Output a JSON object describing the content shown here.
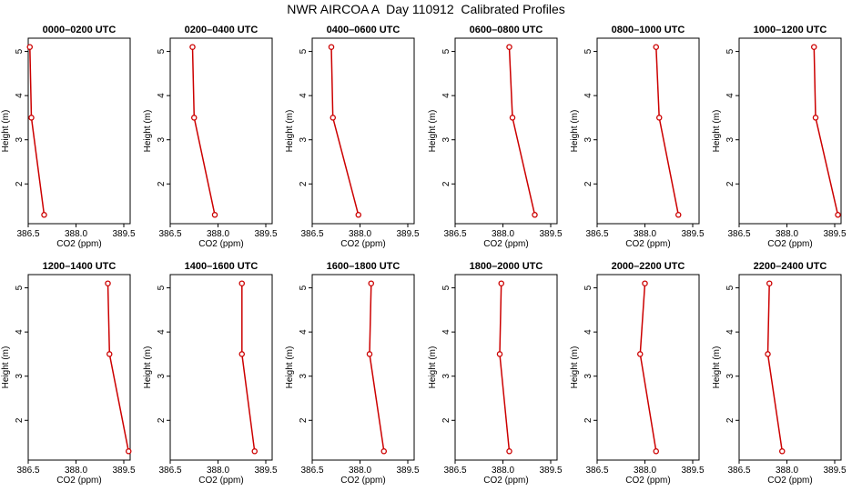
{
  "title": "NWR AIRCOA A  Day 110912  Calibrated Profiles",
  "colors": {
    "series": "#cc0000",
    "axis": "#000000"
  },
  "chart_data": [
    {
      "type": "line",
      "title": "0000–0200 UTC",
      "xlabel": "CO2 (ppm)",
      "ylabel": "Height (m)",
      "xlim": [
        386.5,
        389.7
      ],
      "ylim": [
        1.1,
        5.3
      ],
      "xticks": [
        386.5,
        388.0,
        389.5
      ],
      "xtick_labels": [
        "386.5",
        "388.0",
        "389.5"
      ],
      "yticks": [
        2,
        3,
        4,
        5
      ],
      "ytick_labels": [
        "2",
        "3",
        "4",
        "5"
      ],
      "grid": false,
      "series": [
        {
          "x": [
            386.55,
            386.6,
            387.0
          ],
          "y": [
            5.1,
            3.5,
            1.3
          ]
        }
      ]
    },
    {
      "type": "line",
      "title": "0200–0400 UTC",
      "xlabel": "CO2 (ppm)",
      "ylabel": "Height (m)",
      "xlim": [
        386.5,
        389.7
      ],
      "ylim": [
        1.1,
        5.3
      ],
      "xticks": [
        386.5,
        388.0,
        389.5
      ],
      "xtick_labels": [
        "386.5",
        "388.0",
        "389.5"
      ],
      "yticks": [
        2,
        3,
        4,
        5
      ],
      "ytick_labels": [
        "2",
        "3",
        "4",
        "5"
      ],
      "grid": false,
      "series": [
        {
          "x": [
            387.2,
            387.25,
            387.9
          ],
          "y": [
            5.1,
            3.5,
            1.3
          ]
        }
      ]
    },
    {
      "type": "line",
      "title": "0400–0600 UTC",
      "xlabel": "CO2 (ppm)",
      "ylabel": "Height (m)",
      "xlim": [
        386.5,
        389.7
      ],
      "ylim": [
        1.1,
        5.3
      ],
      "xticks": [
        386.5,
        388.0,
        389.5
      ],
      "xtick_labels": [
        "386.5",
        "388.0",
        "389.5"
      ],
      "yticks": [
        2,
        3,
        4,
        5
      ],
      "ytick_labels": [
        "2",
        "3",
        "4",
        "5"
      ],
      "grid": false,
      "series": [
        {
          "x": [
            387.1,
            387.15,
            387.95
          ],
          "y": [
            5.1,
            3.5,
            1.3
          ]
        }
      ]
    },
    {
      "type": "line",
      "title": "0600–0800 UTC",
      "xlabel": "CO2 (ppm)",
      "ylabel": "Height (m)",
      "xlim": [
        386.5,
        389.7
      ],
      "ylim": [
        1.1,
        5.3
      ],
      "xticks": [
        386.5,
        388.0,
        389.5
      ],
      "xtick_labels": [
        "386.5",
        "388.0",
        "389.5"
      ],
      "yticks": [
        2,
        3,
        4,
        5
      ],
      "ytick_labels": [
        "2",
        "3",
        "4",
        "5"
      ],
      "grid": false,
      "series": [
        {
          "x": [
            388.2,
            388.3,
            389.0
          ],
          "y": [
            5.1,
            3.5,
            1.3
          ]
        }
      ]
    },
    {
      "type": "line",
      "title": "0800–1000 UTC",
      "xlabel": "CO2 (ppm)",
      "ylabel": "Height (m)",
      "xlim": [
        386.5,
        389.7
      ],
      "ylim": [
        1.1,
        5.3
      ],
      "xticks": [
        386.5,
        388.0,
        389.5
      ],
      "xtick_labels": [
        "386.5",
        "388.0",
        "389.5"
      ],
      "yticks": [
        2,
        3,
        4,
        5
      ],
      "ytick_labels": [
        "2",
        "3",
        "4",
        "5"
      ],
      "grid": false,
      "series": [
        {
          "x": [
            388.35,
            388.45,
            389.05
          ],
          "y": [
            5.1,
            3.5,
            1.3
          ]
        }
      ]
    },
    {
      "type": "line",
      "title": "1000–1200 UTC",
      "xlabel": "CO2 (ppm)",
      "ylabel": "Height (m)",
      "xlim": [
        386.5,
        389.7
      ],
      "ylim": [
        1.1,
        5.3
      ],
      "xticks": [
        386.5,
        388.0,
        389.5
      ],
      "xtick_labels": [
        "386.5",
        "388.0",
        "389.5"
      ],
      "yticks": [
        2,
        3,
        4,
        5
      ],
      "ytick_labels": [
        "2",
        "3",
        "4",
        "5"
      ],
      "grid": false,
      "series": [
        {
          "x": [
            388.85,
            388.9,
            389.6
          ],
          "y": [
            5.1,
            3.5,
            1.3
          ]
        }
      ]
    },
    {
      "type": "line",
      "title": "1200–1400 UTC",
      "xlabel": "CO2 (ppm)",
      "ylabel": "Height (m)",
      "xlim": [
        386.5,
        389.7
      ],
      "ylim": [
        1.1,
        5.3
      ],
      "xticks": [
        386.5,
        388.0,
        389.5
      ],
      "xtick_labels": [
        "386.5",
        "388.0",
        "389.5"
      ],
      "yticks": [
        2,
        3,
        4,
        5
      ],
      "ytick_labels": [
        "2",
        "3",
        "4",
        "5"
      ],
      "grid": false,
      "series": [
        {
          "x": [
            389.0,
            389.05,
            389.65
          ],
          "y": [
            5.1,
            3.5,
            1.3
          ]
        }
      ]
    },
    {
      "type": "line",
      "title": "1400–1600 UTC",
      "xlabel": "CO2 (ppm)",
      "ylabel": "Height (m)",
      "xlim": [
        386.5,
        389.7
      ],
      "ylim": [
        1.1,
        5.3
      ],
      "xticks": [
        386.5,
        388.0,
        389.5
      ],
      "xtick_labels": [
        "386.5",
        "388.0",
        "389.5"
      ],
      "yticks": [
        2,
        3,
        4,
        5
      ],
      "ytick_labels": [
        "2",
        "3",
        "4",
        "5"
      ],
      "grid": false,
      "series": [
        {
          "x": [
            388.75,
            388.75,
            389.15
          ],
          "y": [
            5.1,
            3.5,
            1.3
          ]
        }
      ]
    },
    {
      "type": "line",
      "title": "1600–1800 UTC",
      "xlabel": "CO2 (ppm)",
      "ylabel": "Height (m)",
      "xlim": [
        386.5,
        389.7
      ],
      "ylim": [
        1.1,
        5.3
      ],
      "xticks": [
        386.5,
        388.0,
        389.5
      ],
      "xtick_labels": [
        "386.5",
        "388.0",
        "389.5"
      ],
      "yticks": [
        2,
        3,
        4,
        5
      ],
      "ytick_labels": [
        "2",
        "3",
        "4",
        "5"
      ],
      "grid": false,
      "series": [
        {
          "x": [
            388.35,
            388.3,
            388.75
          ],
          "y": [
            5.1,
            3.5,
            1.3
          ]
        }
      ]
    },
    {
      "type": "line",
      "title": "1800–2000 UTC",
      "xlabel": "CO2 (ppm)",
      "ylabel": "Height (m)",
      "xlim": [
        386.5,
        389.7
      ],
      "ylim": [
        1.1,
        5.3
      ],
      "xticks": [
        386.5,
        388.0,
        389.5
      ],
      "xtick_labels": [
        "386.5",
        "388.0",
        "389.5"
      ],
      "yticks": [
        2,
        3,
        4,
        5
      ],
      "ytick_labels": [
        "2",
        "3",
        "4",
        "5"
      ],
      "grid": false,
      "series": [
        {
          "x": [
            387.95,
            387.9,
            388.2
          ],
          "y": [
            5.1,
            3.5,
            1.3
          ]
        }
      ]
    },
    {
      "type": "line",
      "title": "2000–2200 UTC",
      "xlabel": "CO2 (ppm)",
      "ylabel": "Height (m)",
      "xlim": [
        386.5,
        389.7
      ],
      "ylim": [
        1.1,
        5.3
      ],
      "xticks": [
        386.5,
        388.0,
        389.5
      ],
      "xtick_labels": [
        "386.5",
        "388.0",
        "389.5"
      ],
      "yticks": [
        2,
        3,
        4,
        5
      ],
      "ytick_labels": [
        "2",
        "3",
        "4",
        "5"
      ],
      "grid": false,
      "series": [
        {
          "x": [
            388.0,
            387.85,
            388.35
          ],
          "y": [
            5.1,
            3.5,
            1.3
          ]
        }
      ]
    },
    {
      "type": "line",
      "title": "2200–2400 UTC",
      "xlabel": "CO2 (ppm)",
      "ylabel": "Height (m)",
      "xlim": [
        386.5,
        389.7
      ],
      "ylim": [
        1.1,
        5.3
      ],
      "xticks": [
        386.5,
        388.0,
        389.5
      ],
      "xtick_labels": [
        "386.5",
        "388.0",
        "389.5"
      ],
      "yticks": [
        2,
        3,
        4,
        5
      ],
      "ytick_labels": [
        "2",
        "3",
        "4",
        "5"
      ],
      "grid": false,
      "series": [
        {
          "x": [
            387.45,
            387.4,
            387.85
          ],
          "y": [
            5.1,
            3.5,
            1.3
          ]
        }
      ]
    }
  ]
}
